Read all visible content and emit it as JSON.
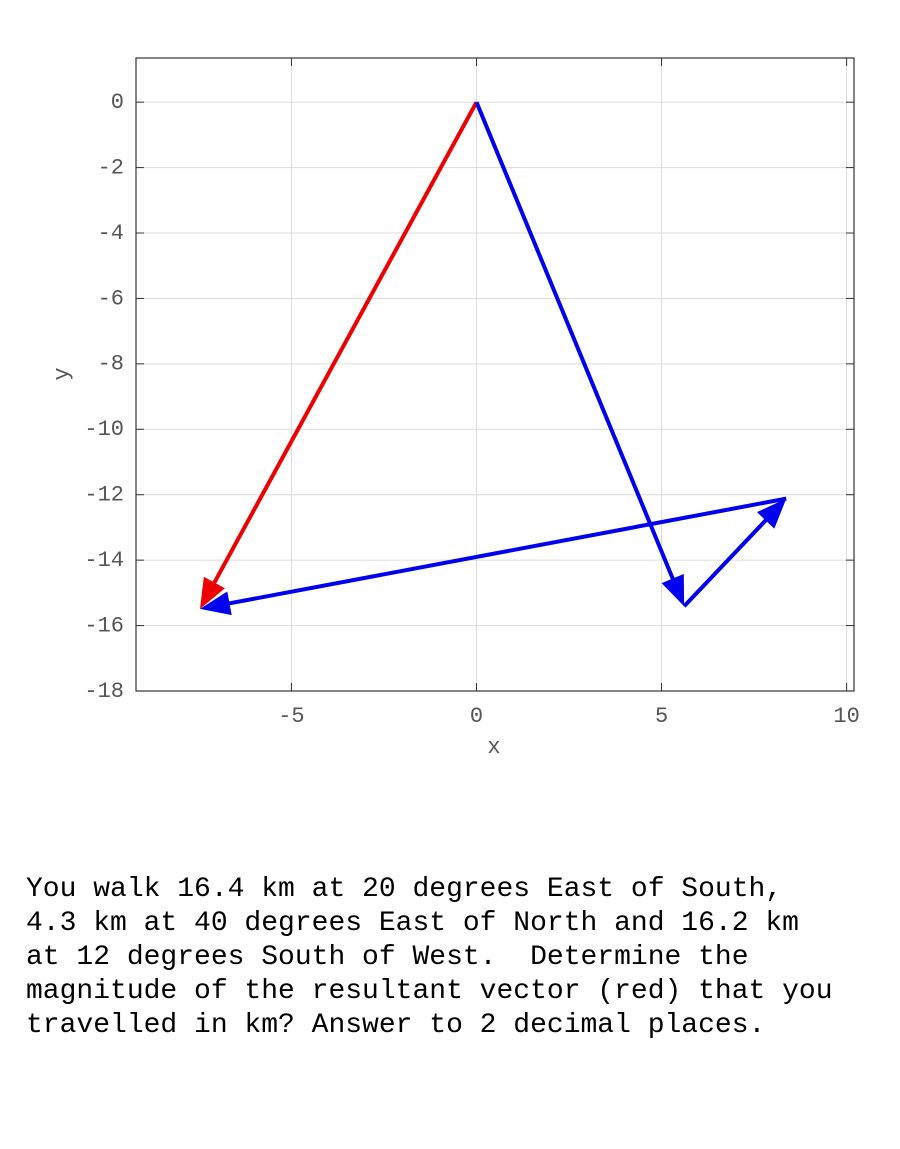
{
  "chart_data": {
    "type": "vector",
    "xlabel": "x",
    "ylabel": "y",
    "xlim": [
      -9.2,
      10.2
    ],
    "ylim": [
      -18,
      1.35
    ],
    "xticks": [
      -5,
      0,
      5,
      10
    ],
    "yticks": [
      0,
      -2,
      -4,
      -6,
      -8,
      -10,
      -12,
      -14,
      -16,
      -18
    ],
    "grid": true,
    "vectors": [
      {
        "color": "#ee0000",
        "x": [
          0,
          -7.47
        ],
        "y": [
          0,
          -15.49
        ]
      },
      {
        "color": "#0000ee",
        "x": [
          0,
          5.61
        ],
        "y": [
          0,
          -15.41
        ]
      },
      {
        "color": "#0000ee",
        "x": [
          5.61,
          8.37
        ],
        "y": [
          -15.41,
          -12.12
        ]
      },
      {
        "color": "#0000ee",
        "x": [
          8.37,
          -7.47
        ],
        "y": [
          -12.12,
          -15.49
        ]
      }
    ]
  },
  "question": {
    "lines": [
      "You walk 16.4 km at 20 degrees East of South,",
      "4.3 km at 40 degrees East of North and 16.2 km",
      "at 12 degrees South of West.  Determine the",
      "magnitude of the resultant vector (red) that you",
      "travelled in km? Answer to 2 decimal places."
    ]
  }
}
